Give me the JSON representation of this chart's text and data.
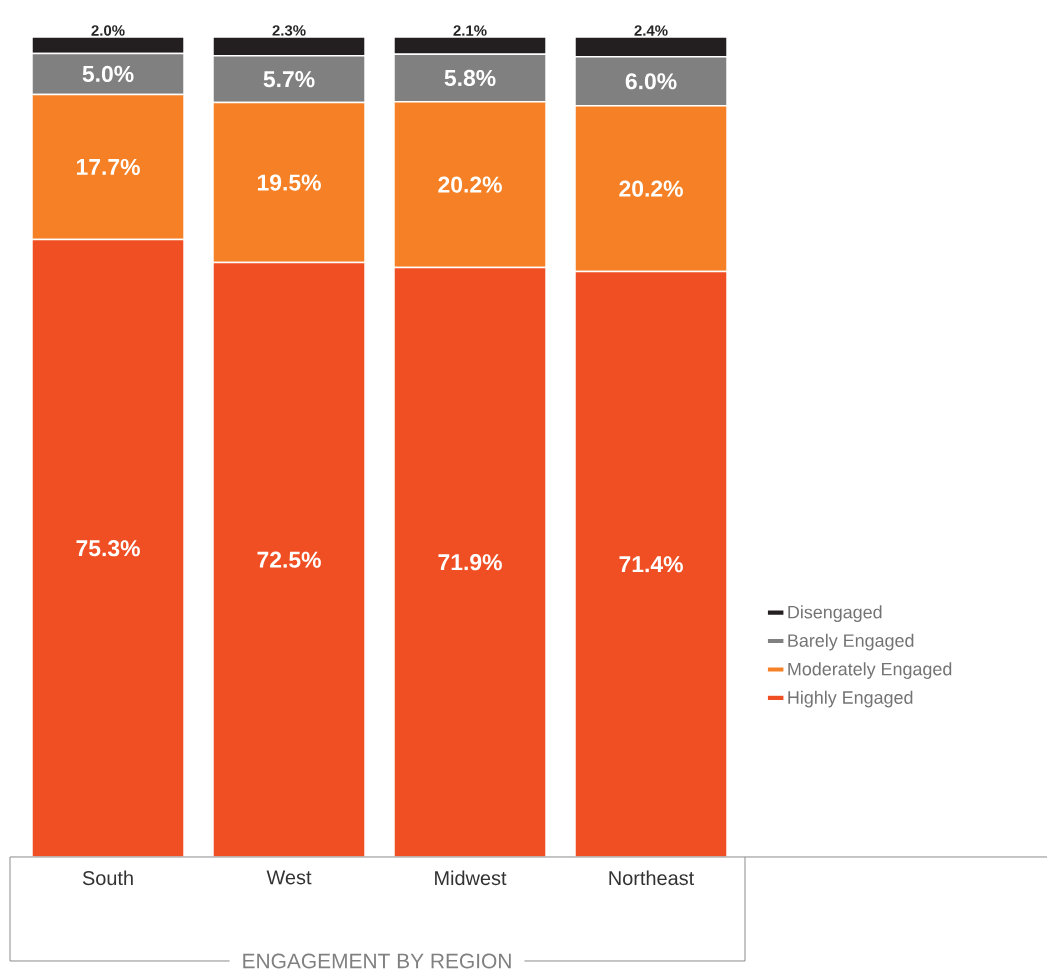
{
  "chart_data": {
    "type": "bar",
    "stacked": true,
    "xlabel": "ENGAGEMENT BY REGION",
    "legend": "right",
    "categories": [
      "South",
      "West",
      "Midwest",
      "Northeast"
    ],
    "series": [
      {
        "name": "Highly Engaged",
        "color": "#f04e23",
        "values": [
          75.3,
          72.5,
          71.9,
          71.4
        ],
        "value_labels": [
          "75.3%",
          "72.5%",
          "71.9%",
          "71.4%"
        ]
      },
      {
        "name": "Moderately Engaged",
        "color": "#f58025",
        "values": [
          17.7,
          19.5,
          20.2,
          20.2
        ],
        "value_labels": [
          "17.7%",
          "19.5%",
          "20.2%",
          "20.2%"
        ]
      },
      {
        "name": "Barely Engaged",
        "color": "#808080",
        "values": [
          5.0,
          5.7,
          5.8,
          6.0
        ],
        "value_labels": [
          "5.0%",
          "5.7%",
          "5.8%",
          "6.0%"
        ]
      },
      {
        "name": "Disengaged",
        "color": "#231f20",
        "values": [
          2.0,
          2.3,
          2.1,
          2.4
        ],
        "value_labels": [
          "2.0%",
          "2.3%",
          "2.1%",
          "2.4%"
        ]
      }
    ]
  }
}
